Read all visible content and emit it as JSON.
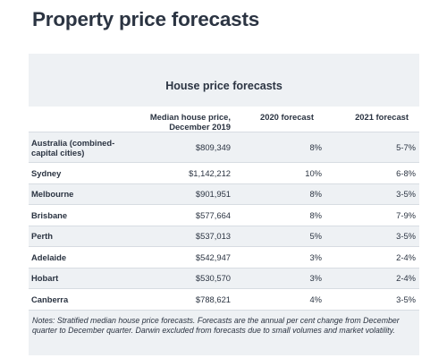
{
  "page": {
    "title": "Property price forecasts"
  },
  "table": {
    "title": "House price forecasts",
    "headers": {
      "city": "",
      "price": "Median house price, December 2019",
      "forecast_2020": "2020 forecast",
      "forecast_2021": "2021 forecast"
    },
    "rows": [
      {
        "city": "Australia (combined-capital cities)",
        "price": "$809,349",
        "forecast_2020": "8%",
        "forecast_2021": "5-7%"
      },
      {
        "city": "Sydney",
        "price": "$1,142,212",
        "forecast_2020": "10%",
        "forecast_2021": "6-8%"
      },
      {
        "city": "Melbourne",
        "price": "$901,951",
        "forecast_2020": "8%",
        "forecast_2021": "3-5%"
      },
      {
        "city": "Brisbane",
        "price": "$577,664",
        "forecast_2020": "8%",
        "forecast_2021": "7-9%"
      },
      {
        "city": "Perth",
        "price": "$537,013",
        "forecast_2020": "5%",
        "forecast_2021": "3-5%"
      },
      {
        "city": "Adelaide",
        "price": "$542,947",
        "forecast_2020": "3%",
        "forecast_2021": "2-4%"
      },
      {
        "city": "Hobart",
        "price": "$530,570",
        "forecast_2020": "3%",
        "forecast_2021": "2-4%"
      },
      {
        "city": "Canberra",
        "price": "$788,621",
        "forecast_2020": "4%",
        "forecast_2021": "3-5%"
      }
    ],
    "notes": "Notes: Stratified median house price forecasts. Forecasts are the annual per cent change from December quarter to December quarter. Darwin excluded from forecasts due to small volumes and market volatility."
  },
  "colors": {
    "title_text": "#2b3442",
    "band_background": "#eef1f4",
    "row_divider": "#d7dce2"
  }
}
